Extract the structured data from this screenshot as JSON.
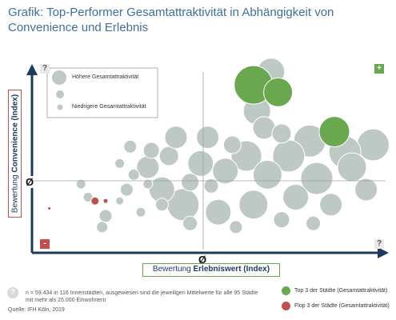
{
  "title": "Grafik: Top-Performer Gesamtattraktivität in Abhängigkeit von Convenience und Erlebnis",
  "axes": {
    "x_label_prefix": "Bewertung ",
    "x_label_bold": "Erlebniswert (Index)",
    "y_label_prefix": "Bewertung ",
    "y_label_bold": "Convenience (Index)",
    "x_mean_symbol": "Ø",
    "y_mean_symbol": "Ø"
  },
  "corners": {
    "top_left": "?",
    "top_right": "+",
    "bottom_left": "-",
    "bottom_right": "?"
  },
  "size_legend": {
    "high": "Höhere Gesamtattraktivität",
    "low": "Niedrigere Gesamtattraktivität"
  },
  "footnote": "n = 59.434 in 116 Innenstädten, ausgewiesen sind die jeweiligen Mittelwerte für alle 95 Städte mit mehr als 25.000 Einwohnern",
  "footnote_icon": "?",
  "source": "Quelle: IFH Köln, 2019",
  "legend": {
    "top": {
      "label": "Top 3 der Städte (Gesamtattraktivität)",
      "color": "#6aa84f"
    },
    "flop": {
      "label": "Flop 3 der Städte (Gesamtattraktivität)",
      "color": "#c0504d"
    }
  },
  "colors": {
    "bubble": "#bec8c5",
    "axis": "#1f3a5f",
    "top": "#6aa84f",
    "flop": "#c0504d"
  },
  "chart_data": {
    "type": "scatter",
    "xlim": [
      0,
      100
    ],
    "ylim": [
      0,
      100
    ],
    "x_mean": 46,
    "y_mean": 44,
    "grid": false,
    "points": [
      {
        "x": 62,
        "y": 88,
        "size": 24,
        "group": "top"
      },
      {
        "x": 69,
        "y": 84,
        "size": 18,
        "group": "top"
      },
      {
        "x": 85,
        "y": 63,
        "size": 19,
        "group": "top"
      },
      {
        "x": 17,
        "y": 26,
        "size": 5,
        "group": "flop"
      },
      {
        "x": 20,
        "y": 26,
        "size": 3,
        "group": "flop"
      },
      {
        "x": 4,
        "y": 22,
        "size": 2,
        "group": "flop"
      },
      {
        "x": 67,
        "y": 95,
        "size": 17,
        "group": "other"
      },
      {
        "x": 63,
        "y": 74,
        "size": 17,
        "group": "other"
      },
      {
        "x": 65,
        "y": 65,
        "size": 14,
        "group": "other"
      },
      {
        "x": 49,
        "y": 60,
        "size": 14,
        "group": "other"
      },
      {
        "x": 78,
        "y": 58,
        "size": 20,
        "group": "other"
      },
      {
        "x": 96,
        "y": 56,
        "size": 20,
        "group": "other"
      },
      {
        "x": 88,
        "y": 52,
        "size": 20,
        "group": "other"
      },
      {
        "x": 72,
        "y": 50,
        "size": 20,
        "group": "other"
      },
      {
        "x": 60,
        "y": 50,
        "size": 19,
        "group": "other"
      },
      {
        "x": 47,
        "y": 46,
        "size": 16,
        "group": "other"
      },
      {
        "x": 54,
        "y": 42,
        "size": 16,
        "group": "other"
      },
      {
        "x": 66,
        "y": 40,
        "size": 18,
        "group": "other"
      },
      {
        "x": 80,
        "y": 38,
        "size": 20,
        "group": "other"
      },
      {
        "x": 90,
        "y": 44,
        "size": 18,
        "group": "other"
      },
      {
        "x": 94,
        "y": 32,
        "size": 14,
        "group": "other"
      },
      {
        "x": 84,
        "y": 24,
        "size": 14,
        "group": "other"
      },
      {
        "x": 74,
        "y": 28,
        "size": 16,
        "group": "other"
      },
      {
        "x": 62,
        "y": 24,
        "size": 18,
        "group": "other"
      },
      {
        "x": 52,
        "y": 20,
        "size": 16,
        "group": "other"
      },
      {
        "x": 42,
        "y": 24,
        "size": 20,
        "group": "other"
      },
      {
        "x": 36,
        "y": 32,
        "size": 16,
        "group": "other"
      },
      {
        "x": 32,
        "y": 44,
        "size": 14,
        "group": "other"
      },
      {
        "x": 38,
        "y": 50,
        "size": 12,
        "group": "other"
      },
      {
        "x": 40,
        "y": 60,
        "size": 14,
        "group": "other"
      },
      {
        "x": 33,
        "y": 53,
        "size": 10,
        "group": "other"
      },
      {
        "x": 27,
        "y": 55,
        "size": 8,
        "group": "other"
      },
      {
        "x": 24,
        "y": 46,
        "size": 6,
        "group": "other"
      },
      {
        "x": 28,
        "y": 40,
        "size": 7,
        "group": "other"
      },
      {
        "x": 32,
        "y": 35,
        "size": 6,
        "group": "other"
      },
      {
        "x": 26,
        "y": 32,
        "size": 8,
        "group": "other"
      },
      {
        "x": 36,
        "y": 24,
        "size": 8,
        "group": "other"
      },
      {
        "x": 30,
        "y": 20,
        "size": 6,
        "group": "other"
      },
      {
        "x": 20,
        "y": 18,
        "size": 8,
        "group": "other"
      },
      {
        "x": 15,
        "y": 28,
        "size": 6,
        "group": "other"
      },
      {
        "x": 19,
        "y": 12,
        "size": 7,
        "group": "other"
      },
      {
        "x": 13,
        "y": 35,
        "size": 6,
        "group": "other"
      },
      {
        "x": 24,
        "y": 26,
        "size": 5,
        "group": "other"
      },
      {
        "x": 44,
        "y": 36,
        "size": 11,
        "group": "other"
      },
      {
        "x": 50,
        "y": 34,
        "size": 9,
        "group": "other"
      },
      {
        "x": 56,
        "y": 56,
        "size": 11,
        "group": "other"
      },
      {
        "x": 70,
        "y": 62,
        "size": 12,
        "group": "other"
      },
      {
        "x": 44,
        "y": 14,
        "size": 9,
        "group": "other"
      },
      {
        "x": 57,
        "y": 12,
        "size": 8,
        "group": "other"
      },
      {
        "x": 70,
        "y": 16,
        "size": 10,
        "group": "other"
      },
      {
        "x": 79,
        "y": 14,
        "size": 9,
        "group": "other"
      }
    ]
  }
}
